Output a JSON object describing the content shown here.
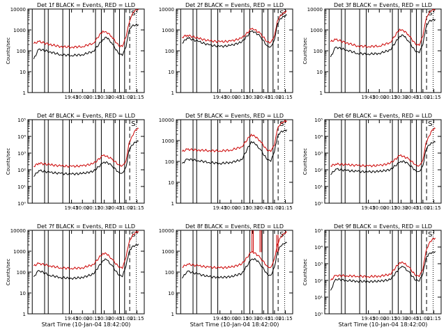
{
  "figure": {
    "background": "#ffffff",
    "event_color": "#000000",
    "lld_color": "#cc0000",
    "time_ticks": [
      "19:45",
      "20:00",
      "20:15",
      "20:30",
      "20:45",
      "21:00",
      "21:15"
    ]
  },
  "chart_data": [
    {
      "type": "line",
      "title": "Det 1f BLACK = Events, RED = LLD",
      "xlabel": "",
      "ylabel": "Counts/sec",
      "xlim": [
        "18:45",
        "21:25"
      ],
      "ylim": [
        1,
        10000
      ],
      "yscale": "log",
      "ytick_labels": [
        "1",
        "10",
        "100",
        "1000",
        "10000"
      ],
      "x": [
        "18:53",
        "19:00",
        "19:15",
        "19:30",
        "19:45",
        "20:00",
        "20:15",
        "20:28",
        "20:33",
        "20:40",
        "20:50",
        "20:55",
        "21:00",
        "21:04",
        "21:08",
        "21:13",
        "21:17"
      ],
      "series": [
        {
          "name": "Events",
          "color": "#000000",
          "values": [
            40,
            120,
            90,
            65,
            60,
            65,
            95,
            350,
            450,
            250,
            70,
            60,
            150,
            900,
            1500,
            1700,
            1800
          ]
        },
        {
          "name": "LLD",
          "color": "#cc0000",
          "values": [
            220,
            280,
            200,
            160,
            150,
            160,
            230,
            900,
            800,
            500,
            170,
            160,
            450,
            2000,
            5000,
            9000,
            9500
          ]
        }
      ],
      "vlines_solid": [
        "18:51",
        "19:08",
        "19:13",
        "19:33",
        "19:42",
        "20:18",
        "20:26",
        "20:43",
        "20:51",
        "20:58"
      ],
      "vline_dashed": "21:05",
      "vline_dotted": "21:14",
      "annotation": "S"
    },
    {
      "type": "line",
      "title": "Det 2f BLACK = Events, RED = LLD",
      "xlabel": "",
      "ylabel": "",
      "xlim": [
        "18:45",
        "21:25"
      ],
      "ylim": [
        1,
        10000
      ],
      "yscale": "log",
      "ytick_labels": [
        "1",
        "10",
        "100",
        "1000",
        "10000"
      ],
      "x": [
        "18:53",
        "19:00",
        "19:15",
        "19:30",
        "19:45",
        "20:00",
        "20:15",
        "20:28",
        "20:33",
        "20:40",
        "20:50",
        "20:55",
        "21:00",
        "21:04",
        "21:08",
        "21:13",
        "21:17"
      ],
      "series": [
        {
          "name": "Events",
          "color": "#000000",
          "values": [
            230,
            420,
            280,
            190,
            160,
            180,
            260,
            850,
            800,
            500,
            170,
            160,
            350,
            2000,
            3500,
            4500,
            5000
          ]
        },
        {
          "name": "LLD",
          "color": "#cc0000",
          "values": [
            450,
            560,
            400,
            300,
            270,
            290,
            400,
            1100,
            1000,
            700,
            270,
            260,
            550,
            2800,
            5000,
            7000,
            8000
          ]
        }
      ],
      "vlines_solid": [
        "18:51",
        "19:08",
        "19:13",
        "19:33",
        "19:42",
        "20:18",
        "20:26",
        "20:43",
        "20:51",
        "20:58"
      ],
      "vline_dashed": "21:05",
      "vline_dotted": "21:14",
      "annotation": "S"
    },
    {
      "type": "line",
      "title": "Det 3f BLACK = Events, RED = LLD",
      "xlabel": "",
      "ylabel": "Counts/sec",
      "xlim": [
        "18:45",
        "21:25"
      ],
      "ylim": [
        1,
        10000
      ],
      "yscale": "log",
      "ytick_labels": [
        "1",
        "10",
        "100",
        "1000",
        "10000"
      ],
      "x": [
        "18:53",
        "19:00",
        "19:15",
        "19:30",
        "19:45",
        "20:00",
        "20:15",
        "20:28",
        "20:33",
        "20:40",
        "20:50",
        "20:55",
        "21:00",
        "21:04",
        "21:08",
        "21:13",
        "21:17"
      ],
      "series": [
        {
          "name": "Events",
          "color": "#000000",
          "values": [
            50,
            150,
            110,
            75,
            70,
            75,
            110,
            500,
            550,
            300,
            90,
            80,
            200,
            1200,
            2500,
            3000,
            3200
          ]
        },
        {
          "name": "LLD",
          "color": "#cc0000",
          "values": [
            270,
            350,
            240,
            170,
            160,
            170,
            250,
            1100,
            950,
            600,
            200,
            180,
            500,
            3000,
            6000,
            9000,
            9500
          ]
        }
      ],
      "vlines_solid": [
        "18:51",
        "19:08",
        "19:13",
        "19:33",
        "19:42",
        "20:18",
        "20:26",
        "20:43",
        "20:51",
        "20:58"
      ],
      "vline_dashed": "21:05",
      "vline_dotted": "21:14",
      "annotation": "S"
    },
    {
      "type": "line",
      "title": "Det 4f BLACK = Events, RED = LLD",
      "xlabel": "",
      "ylabel": "Counts/sec",
      "xlim": [
        "18:45",
        "21:25"
      ],
      "ylim": [
        1,
        100000
      ],
      "yscale": "log",
      "ytick_labels": [
        "10⁰",
        "10¹",
        "10²",
        "10³",
        "10⁴",
        "10⁵"
      ],
      "x": [
        "18:53",
        "19:00",
        "19:15",
        "19:30",
        "19:45",
        "20:00",
        "20:15",
        "20:28",
        "20:33",
        "20:40",
        "20:50",
        "20:55",
        "21:00",
        "21:04",
        "21:08",
        "21:13",
        "21:17"
      ],
      "series": [
        {
          "name": "Events",
          "color": "#000000",
          "values": [
            40,
            90,
            70,
            60,
            55,
            60,
            80,
            250,
            300,
            180,
            70,
            65,
            150,
            1500,
            3000,
            4500,
            5000
          ]
        },
        {
          "name": "LLD",
          "color": "#cc0000",
          "values": [
            160,
            250,
            200,
            170,
            160,
            170,
            230,
            700,
            650,
            450,
            200,
            180,
            350,
            4000,
            10000,
            25000,
            30000
          ]
        }
      ],
      "vlines_solid": [
        "18:51",
        "19:08",
        "19:13",
        "19:33",
        "19:42",
        "20:18",
        "20:26",
        "20:43",
        "20:51",
        "20:58"
      ],
      "vline_dashed": "21:05",
      "vline_dotted": "21:14",
      "annotation": "S"
    },
    {
      "type": "line",
      "title": "Det 5f BLACK = Events, RED = LLD",
      "xlabel": "",
      "ylabel": "",
      "xlim": [
        "18:45",
        "21:25"
      ],
      "ylim": [
        1,
        10000
      ],
      "yscale": "log",
      "ytick_labels": [
        "1",
        "10",
        "100",
        "1000",
        "10000"
      ],
      "x": [
        "18:53",
        "19:00",
        "19:15",
        "19:30",
        "19:45",
        "20:00",
        "20:15",
        "20:28",
        "20:33",
        "20:40",
        "20:50",
        "20:55",
        "21:00",
        "21:04",
        "21:08",
        "21:13",
        "21:17"
      ],
      "series": [
        {
          "name": "Events",
          "color": "#000000",
          "values": [
            80,
            130,
            110,
            90,
            80,
            90,
            120,
            900,
            700,
            400,
            120,
            100,
            300,
            1500,
            2500,
            3000,
            3300
          ]
        },
        {
          "name": "LLD",
          "color": "#cc0000",
          "values": [
            300,
            380,
            350,
            330,
            320,
            350,
            500,
            2000,
            1600,
            1000,
            330,
            300,
            600,
            3500,
            6000,
            8000,
            9000
          ]
        }
      ],
      "vlines_solid": [
        "18:51",
        "19:08",
        "19:13",
        "19:33",
        "19:42",
        "20:18",
        "20:26",
        "20:43",
        "20:51",
        "20:58"
      ],
      "vline_dashed": "21:05",
      "vline_dotted": "21:14",
      "annotation": "S"
    },
    {
      "type": "line",
      "title": "Det 6f BLACK = Events, RED = LLD",
      "xlabel": "",
      "ylabel": "Counts/sec",
      "xlim": [
        "18:45",
        "21:25"
      ],
      "ylim": [
        1,
        100000
      ],
      "yscale": "log",
      "ytick_labels": [
        "10⁰",
        "10¹",
        "10²",
        "10³",
        "10⁴",
        "10⁵"
      ],
      "x": [
        "18:53",
        "19:00",
        "19:15",
        "19:30",
        "19:45",
        "20:00",
        "20:15",
        "20:28",
        "20:33",
        "20:40",
        "20:50",
        "20:55",
        "21:00",
        "21:04",
        "21:08",
        "21:13",
        "21:17"
      ],
      "series": [
        {
          "name": "Events",
          "color": "#000000",
          "values": [
            50,
            110,
            90,
            80,
            75,
            80,
            100,
            280,
            350,
            220,
            90,
            80,
            180,
            1500,
            3000,
            4000,
            4500
          ]
        },
        {
          "name": "LLD",
          "color": "#cc0000",
          "values": [
            170,
            220,
            200,
            180,
            170,
            180,
            240,
            700,
            650,
            450,
            200,
            180,
            400,
            4000,
            10000,
            25000,
            30000
          ]
        }
      ],
      "vlines_solid": [
        "18:51",
        "19:08",
        "19:13",
        "19:33",
        "19:42",
        "20:18",
        "20:26",
        "20:43",
        "20:51",
        "20:58"
      ],
      "vline_dashed": "21:05",
      "vline_dotted": "21:14",
      "annotation": "S"
    },
    {
      "type": "line",
      "title": "Det 7f BLACK = Events, RED = LLD",
      "xlabel": "",
      "ylabel": "Counts/sec",
      "xlim": [
        "18:45",
        "21:25"
      ],
      "ylim": [
        1,
        10000
      ],
      "yscale": "log",
      "ytick_labels": [
        "1",
        "10",
        "100",
        "1000",
        "10000"
      ],
      "x": [
        "18:53",
        "19:00",
        "19:15",
        "19:30",
        "19:45",
        "20:00",
        "20:15",
        "20:28",
        "20:33",
        "20:40",
        "20:50",
        "20:55",
        "21:00",
        "21:04",
        "21:08",
        "21:13",
        "21:17"
      ],
      "series": [
        {
          "name": "Events",
          "color": "#000000",
          "values": [
            60,
            120,
            70,
            55,
            50,
            55,
            80,
            350,
            400,
            220,
            70,
            60,
            200,
            900,
            1600,
            2000,
            2200
          ]
        },
        {
          "name": "LLD",
          "color": "#cc0000",
          "values": [
            200,
            260,
            200,
            160,
            150,
            160,
            230,
            800,
            750,
            450,
            170,
            150,
            500,
            2500,
            5000,
            8000,
            9000
          ]
        }
      ],
      "vlines_solid": [
        "18:51",
        "19:08",
        "19:13",
        "19:33",
        "19:42",
        "20:18",
        "20:26",
        "20:43",
        "20:51",
        "20:58"
      ],
      "vline_dashed": "21:05",
      "vline_dotted": "21:14",
      "annotation": "S"
    },
    {
      "type": "line",
      "title": "Det 8f BLACK = Events, RED = LLD",
      "xlabel": "",
      "ylabel": "",
      "xlim": [
        "18:45",
        "21:25"
      ],
      "ylim": [
        1,
        10000
      ],
      "yscale": "log",
      "ytick_labels": [
        "1",
        "10",
        "100",
        "1000",
        "10000"
      ],
      "x": [
        "18:53",
        "19:00",
        "19:15",
        "19:30",
        "19:45",
        "20:00",
        "20:15",
        "20:28",
        "20:33",
        "20:40",
        "20:50",
        "20:55",
        "21:00",
        "21:04",
        "21:08",
        "21:13",
        "21:17"
      ],
      "series": [
        {
          "name": "Events",
          "color": "#000000",
          "values": [
            50,
            110,
            80,
            60,
            55,
            60,
            85,
            400,
            450,
            250,
            80,
            70,
            180,
            900,
            1700,
            2200,
            2500
          ]
        },
        {
          "name": "LLD",
          "color": "#cc0000",
          "values": [
            170,
            240,
            200,
            170,
            160,
            170,
            240,
            900,
            850,
            500,
            190,
            170,
            450,
            2200,
            4500,
            7000,
            8000
          ]
        }
      ],
      "spikes": [
        {
          "x": "20:29",
          "value": 10000
        },
        {
          "x": "20:40",
          "value": 10000
        },
        {
          "x": "21:03",
          "value": 6000
        }
      ],
      "vlines_solid": [
        "18:51",
        "19:08",
        "19:13",
        "19:33",
        "19:42",
        "20:18",
        "20:26",
        "20:43",
        "20:51",
        "20:58"
      ],
      "vline_dashed": "21:05",
      "vline_dotted": "21:14",
      "annotation": "S"
    },
    {
      "type": "line",
      "title": "Det 9f BLACK = Events, RED = LLD",
      "xlabel": "",
      "ylabel": "Counts/sec",
      "xlim": [
        "18:45",
        "21:25"
      ],
      "ylim": [
        1,
        100000
      ],
      "yscale": "log",
      "ytick_labels": [
        "10⁰",
        "10¹",
        "10²",
        "10³",
        "10⁴",
        "10⁵"
      ],
      "x": [
        "18:53",
        "19:00",
        "19:15",
        "19:30",
        "19:45",
        "20:00",
        "20:15",
        "20:28",
        "20:33",
        "20:40",
        "20:50",
        "20:55",
        "21:00",
        "21:04",
        "21:08",
        "21:13",
        "21:17"
      ],
      "series": [
        {
          "name": "Events",
          "color": "#000000",
          "values": [
            25,
            120,
            100,
            90,
            85,
            90,
            110,
            550,
            650,
            350,
            100,
            90,
            250,
            2000,
            4000,
            5000,
            5500
          ]
        },
        {
          "name": "LLD",
          "color": "#cc0000",
          "values": [
            100,
            200,
            190,
            180,
            170,
            180,
            230,
            1200,
            1100,
            700,
            190,
            170,
            450,
            5000,
            15000,
            30000,
            35000
          ]
        }
      ],
      "vlines_solid": [
        "18:51",
        "19:08",
        "19:13",
        "19:33",
        "19:42",
        "20:18",
        "20:26",
        "20:43",
        "20:51",
        "20:58"
      ],
      "vline_dashed": "21:05",
      "vline_dotted": "21:14",
      "annotation": "S"
    }
  ],
  "xlabels_bottom": [
    "Start Time (10-Jan-04 18:42:00)",
    "Start Time (10-Jan-04 18:42:00)",
    "Start Time (10-Jan-04 18:42:00)"
  ]
}
